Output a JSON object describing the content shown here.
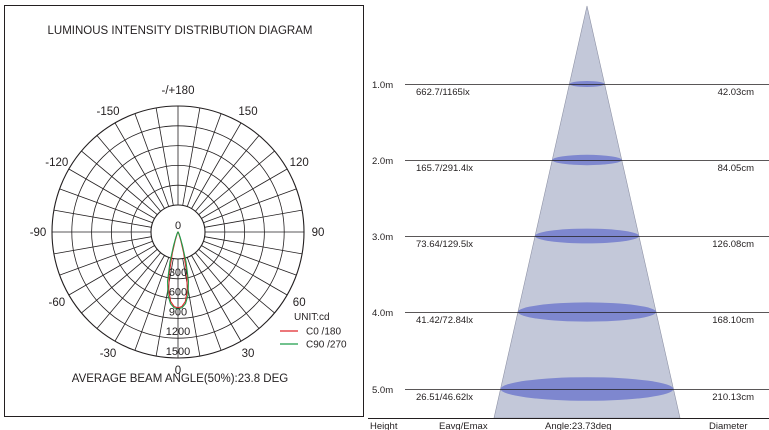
{
  "polar": {
    "title": "LUMINOUS INTENSITY DISTRIBUTION DIAGRAM",
    "angle_labels": [
      {
        "deg": 0,
        "label": "-/+180"
      },
      {
        "deg": 30,
        "label": "150"
      },
      {
        "deg": -30,
        "label": "-150"
      },
      {
        "deg": 60,
        "label": "120"
      },
      {
        "deg": -60,
        "label": "-120"
      },
      {
        "deg": 90,
        "label": "90"
      },
      {
        "deg": -90,
        "label": "-90"
      },
      {
        "deg": 120,
        "label": "60"
      },
      {
        "deg": -120,
        "label": "-60"
      },
      {
        "deg": 150,
        "label": "30"
      },
      {
        "deg": -150,
        "label": "-30"
      },
      {
        "deg": 180,
        "label": "0"
      }
    ],
    "rings": [
      {
        "value": 0,
        "label": "0"
      },
      {
        "value": 300,
        "label": "300"
      },
      {
        "value": 600,
        "label": "600"
      },
      {
        "value": 900,
        "label": "900"
      },
      {
        "value": 1200,
        "label": "1200"
      },
      {
        "value": 1500,
        "label": "1500"
      }
    ],
    "unit_label": "UNIT:cd",
    "legend": [
      {
        "label": "C0  /180",
        "color": "#e0262b"
      },
      {
        "label": "C90 /270",
        "color": "#1e9e4a"
      }
    ],
    "footer": "AVERAGE BEAM ANGLE(50%):23.8 DEG"
  },
  "chart_data": {
    "type": "polar-intensity",
    "unit": "cd",
    "beam_angle_deg": 23.8,
    "series": [
      {
        "name": "C0  /180",
        "color": "#e0262b",
        "points": [
          [
            0,
            1150
          ],
          [
            3,
            1130
          ],
          [
            6,
            1060
          ],
          [
            9,
            900
          ],
          [
            12,
            640
          ],
          [
            15,
            330
          ],
          [
            18,
            140
          ],
          [
            22,
            50
          ],
          [
            30,
            15
          ],
          [
            45,
            5
          ],
          [
            60,
            0
          ]
        ]
      },
      {
        "name": "C90 /270",
        "color": "#1e9e4a",
        "points": [
          [
            0,
            1165
          ],
          [
            3,
            1150
          ],
          [
            6,
            1090
          ],
          [
            9,
            970
          ],
          [
            12,
            760
          ],
          [
            15,
            470
          ],
          [
            18,
            220
          ],
          [
            22,
            90
          ],
          [
            30,
            25
          ],
          [
            45,
            6
          ],
          [
            60,
            0
          ]
        ]
      }
    ]
  },
  "cone": {
    "rows": [
      {
        "height": "1.0m",
        "illuminance": "662.7/1165lx",
        "diameter": "42.03cm"
      },
      {
        "height": "2.0m",
        "illuminance": "165.7/291.4lx",
        "diameter": "84.05cm"
      },
      {
        "height": "3.0m",
        "illuminance": "73.64/129.5lx",
        "diameter": "126.08cm"
      },
      {
        "height": "4.0m",
        "illuminance": "41.42/72.84lx",
        "diameter": "168.10cm"
      },
      {
        "height": "5.0m",
        "illuminance": "26.51/46.62lx",
        "diameter": "210.13cm"
      }
    ],
    "footer": {
      "height": "Height",
      "eavg": "Eavg/Emax",
      "angle": "Angle:23.73deg",
      "diameter": "Diameter"
    },
    "colors": {
      "cone": "#c3c8d9",
      "ellipse": "#7e87cf"
    }
  }
}
